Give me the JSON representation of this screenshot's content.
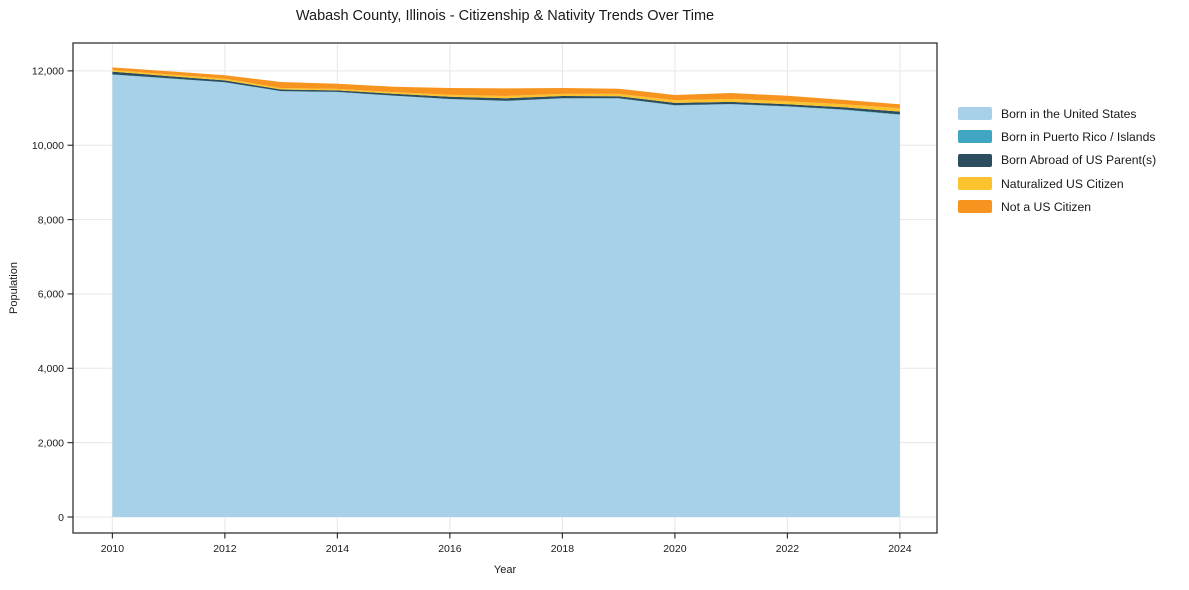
{
  "title": "Wabash County, Illinois - Citizenship & Nativity Trends Over Time",
  "axes": {
    "x_label": "Year",
    "y_label": "Population",
    "x_tick_labels": [
      "2010",
      "2012",
      "2014",
      "2016",
      "2018",
      "2020",
      "2022",
      "2024"
    ],
    "y_tick_labels": [
      "0",
      "2,000",
      "4,000",
      "6,000",
      "8,000",
      "10,000",
      "12,000"
    ]
  },
  "chart_data": {
    "type": "area",
    "stacked": true,
    "title": "Wabash County, Illinois - Citizenship & Nativity Trends Over Time",
    "xlabel": "Year",
    "ylabel": "Population",
    "x": [
      2010,
      2011,
      2012,
      2013,
      2014,
      2015,
      2016,
      2017,
      2018,
      2019,
      2020,
      2021,
      2022,
      2023,
      2024
    ],
    "series": [
      {
        "name": "Born in the United States",
        "color": "#a6d1e8",
        "values": [
          11900,
          11795,
          11690,
          11450,
          11430,
          11330,
          11240,
          11190,
          11260,
          11260,
          11070,
          11100,
          11040,
          10950,
          10820
        ]
      },
      {
        "name": "Born in Puerto Rico / Islands",
        "color": "#41a6c2",
        "values": [
          5,
          5,
          5,
          5,
          5,
          5,
          5,
          5,
          5,
          5,
          10,
          10,
          10,
          10,
          10
        ]
      },
      {
        "name": "Born Abroad of US Parent(s)",
        "color": "#2b4d5e",
        "values": [
          75,
          60,
          50,
          45,
          40,
          50,
          60,
          70,
          60,
          55,
          60,
          55,
          55,
          60,
          75
        ]
      },
      {
        "name": "Naturalized US Citizen",
        "color": "#fcc32f",
        "values": [
          45,
          45,
          45,
          40,
          40,
          45,
          55,
          60,
          55,
          60,
          75,
          80,
          80,
          85,
          90
        ]
      },
      {
        "name": "Not a US Citizen",
        "color": "#f7941f",
        "values": [
          70,
          85,
          90,
          160,
          140,
          145,
          180,
          205,
          160,
          140,
          135,
          160,
          145,
          115,
          105
        ]
      }
    ],
    "x_ticks": [
      2010,
      2012,
      2014,
      2016,
      2018,
      2020,
      2022,
      2024
    ],
    "y_ticks": [
      0,
      2000,
      4000,
      6000,
      8000,
      10000,
      12000
    ],
    "xlim": [
      2009.3,
      2024.66
    ],
    "ylim": [
      -430,
      12750
    ],
    "grid": true,
    "legend_position": "right",
    "grid_color": "#e7e7e7",
    "spine_color": "#222222",
    "tick_label_color": "#1a1a1a"
  }
}
